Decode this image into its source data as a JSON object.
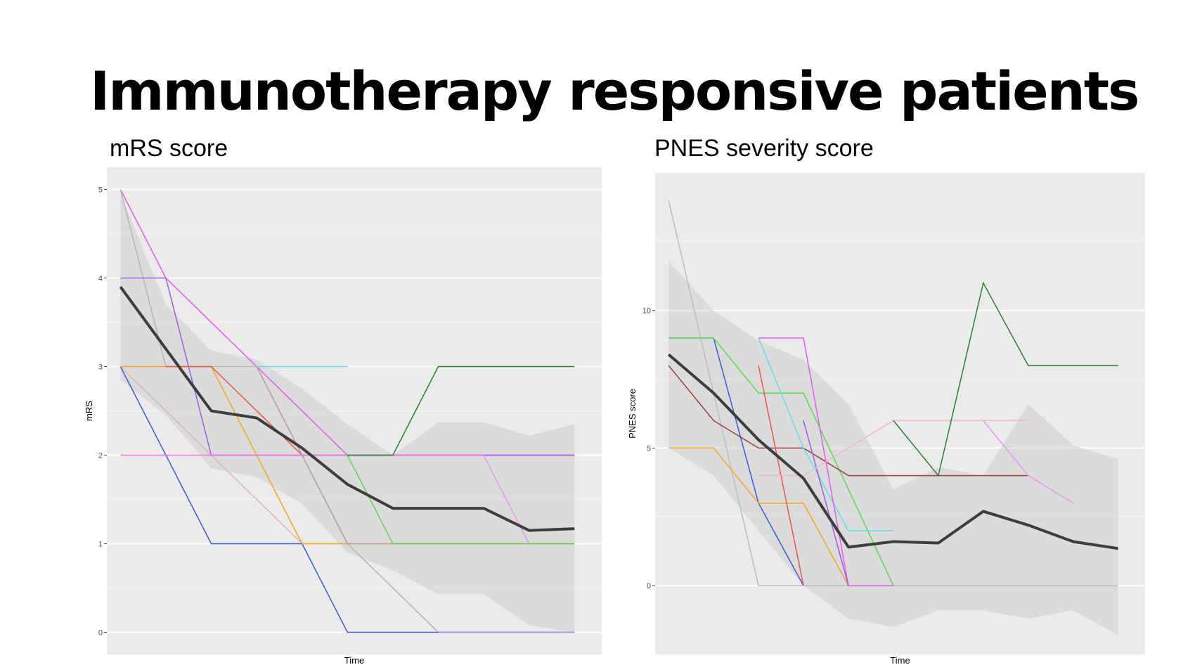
{
  "slide": {
    "title": "Immunotherapy responsive patients",
    "left_subtitle": "mRS score",
    "right_subtitle": "PNES severity score"
  },
  "chart_data": [
    {
      "id": "mrs",
      "type": "line",
      "title": "mRS score",
      "xlabel": "Time",
      "ylabel": "mRS",
      "xlim": [
        0.7,
        11.6
      ],
      "ylim": [
        -0.25,
        5.25
      ],
      "yticks": [
        0,
        1,
        2,
        3,
        4,
        5
      ],
      "background": "#ebebeb",
      "band": {
        "x": [
          1,
          2,
          3,
          4,
          5,
          6,
          7,
          8,
          9,
          10,
          11
        ],
        "upper": [
          4.95,
          3.7,
          3.18,
          3.08,
          2.75,
          2.35,
          2.0,
          2.37,
          2.37,
          2.22,
          2.35
        ],
        "lower": [
          2.85,
          2.45,
          1.85,
          1.75,
          1.45,
          0.9,
          0.7,
          0.43,
          0.43,
          0.08,
          0.0
        ]
      },
      "mean": {
        "x": [
          1,
          2,
          3,
          4,
          5,
          6,
          7,
          8,
          9,
          10,
          11
        ],
        "y": [
          3.9,
          3.2,
          2.5,
          2.42,
          2.08,
          1.67,
          1.4,
          1.4,
          1.4,
          1.15,
          1.17
        ]
      },
      "series": [
        {
          "color": "#e75bf0",
          "x": [
            1,
            2,
            4,
            6,
            11
          ],
          "y": [
            5,
            4,
            3,
            2,
            2
          ]
        },
        {
          "color": "#b5b5b5",
          "x": [
            1,
            2,
            4,
            6,
            8,
            11
          ],
          "y": [
            5,
            3,
            3,
            1,
            0,
            0
          ]
        },
        {
          "color": "#9b5de5",
          "x": [
            1,
            2,
            3,
            11
          ],
          "y": [
            4,
            4,
            2,
            2
          ]
        },
        {
          "color": "#d9b6b0",
          "x": [
            1,
            3,
            5,
            11
          ],
          "y": [
            3,
            2,
            1,
            1
          ]
        },
        {
          "color": "#3b5bdb",
          "x": [
            1,
            3,
            5,
            6,
            11
          ],
          "y": [
            3,
            1,
            1,
            0,
            0
          ]
        },
        {
          "color": "#f5a623",
          "x": [
            1,
            3,
            4,
            5,
            11
          ],
          "y": [
            3,
            3,
            2,
            1,
            1
          ]
        },
        {
          "color": "#e8564a",
          "x": [
            2,
            3,
            5
          ],
          "y": [
            3,
            3,
            2
          ]
        },
        {
          "color": "#5edfe8",
          "x": [
            4,
            6
          ],
          "y": [
            3,
            3
          ]
        },
        {
          "color": "#bba0a0",
          "x": [
            4,
            5,
            6,
            7
          ],
          "y": [
            3,
            2,
            1,
            1
          ]
        },
        {
          "color": "#f06ee0",
          "x": [
            1,
            9
          ],
          "y": [
            2,
            2
          ]
        },
        {
          "color": "#5adb4e",
          "x": [
            6,
            7,
            8,
            11
          ],
          "y": [
            2,
            1,
            1,
            1
          ]
        },
        {
          "color": "#2e7d32",
          "x": [
            6,
            7,
            8,
            11
          ],
          "y": [
            2,
            2,
            3,
            3
          ]
        },
        {
          "color": "#e29be8",
          "x": [
            9,
            10
          ],
          "y": [
            2,
            1
          ]
        },
        {
          "color": "#b39ddb",
          "x": [
            8,
            11
          ],
          "y": [
            0,
            0
          ]
        }
      ]
    },
    {
      "id": "pnes",
      "type": "line",
      "title": "PNES severity score",
      "xlabel": "Time",
      "ylabel": "PNES score",
      "xlim": [
        0.7,
        11.6
      ],
      "ylim": [
        -2.5,
        15
      ],
      "yticks": [
        0,
        5,
        10
      ],
      "background": "#ebebeb",
      "band": {
        "x": [
          1,
          2,
          3,
          4,
          5,
          6,
          7,
          8,
          9,
          10,
          11
        ],
        "upper": [
          11.8,
          10.0,
          8.9,
          8.2,
          6.6,
          3.5,
          4.3,
          4.0,
          6.6,
          5.1,
          4.6
        ],
        "lower": [
          5.0,
          4.0,
          2.0,
          0.0,
          -1.2,
          -1.5,
          -0.9,
          -0.9,
          -1.2,
          -0.9,
          -1.8
        ]
      },
      "mean": {
        "x": [
          1,
          2,
          3,
          4,
          5,
          6,
          7,
          8,
          9,
          10,
          11
        ],
        "y": [
          8.4,
          7.0,
          5.3,
          3.9,
          1.4,
          1.6,
          1.55,
          2.7,
          2.2,
          1.6,
          1.35
        ]
      },
      "series": [
        {
          "color": "#bdbdbd",
          "x": [
            1,
            3,
            11
          ],
          "y": [
            14,
            0,
            0
          ]
        },
        {
          "color": "#3b5bdb",
          "x": [
            1,
            2,
            3,
            4
          ],
          "y": [
            9,
            9,
            3,
            0
          ]
        },
        {
          "color": "#5adb4e",
          "x": [
            1,
            2,
            3,
            4,
            6
          ],
          "y": [
            9,
            9,
            7,
            7,
            0
          ]
        },
        {
          "color": "#a04040",
          "x": [
            1,
            2,
            3,
            4,
            5,
            9
          ],
          "y": [
            8,
            6,
            5,
            5,
            4,
            4
          ]
        },
        {
          "color": "#f5a623",
          "x": [
            1,
            2,
            3,
            4,
            5
          ],
          "y": [
            5,
            5,
            3,
            3,
            0
          ]
        },
        {
          "color": "#e8564a",
          "x": [
            3,
            4
          ],
          "y": [
            8,
            0
          ]
        },
        {
          "color": "#5edfe8",
          "x": [
            3,
            4,
            5,
            6
          ],
          "y": [
            9,
            5,
            2,
            2
          ]
        },
        {
          "color": "#e75bf0",
          "x": [
            3,
            4,
            5,
            6
          ],
          "y": [
            9,
            9,
            0,
            0
          ]
        },
        {
          "color": "#9b5de5",
          "x": [
            4,
            5
          ],
          "y": [
            6,
            0
          ]
        },
        {
          "color": "#f4b6c2",
          "x": [
            3,
            4,
            5,
            6,
            9
          ],
          "y": [
            4,
            4,
            5,
            6,
            6
          ]
        },
        {
          "color": "#2e7d32",
          "x": [
            6,
            7,
            8,
            9,
            11
          ],
          "y": [
            6,
            4,
            11,
            8,
            8
          ]
        },
        {
          "color": "#e29be8",
          "x": [
            8,
            9,
            10
          ],
          "y": [
            6,
            4,
            3
          ]
        }
      ]
    }
  ]
}
